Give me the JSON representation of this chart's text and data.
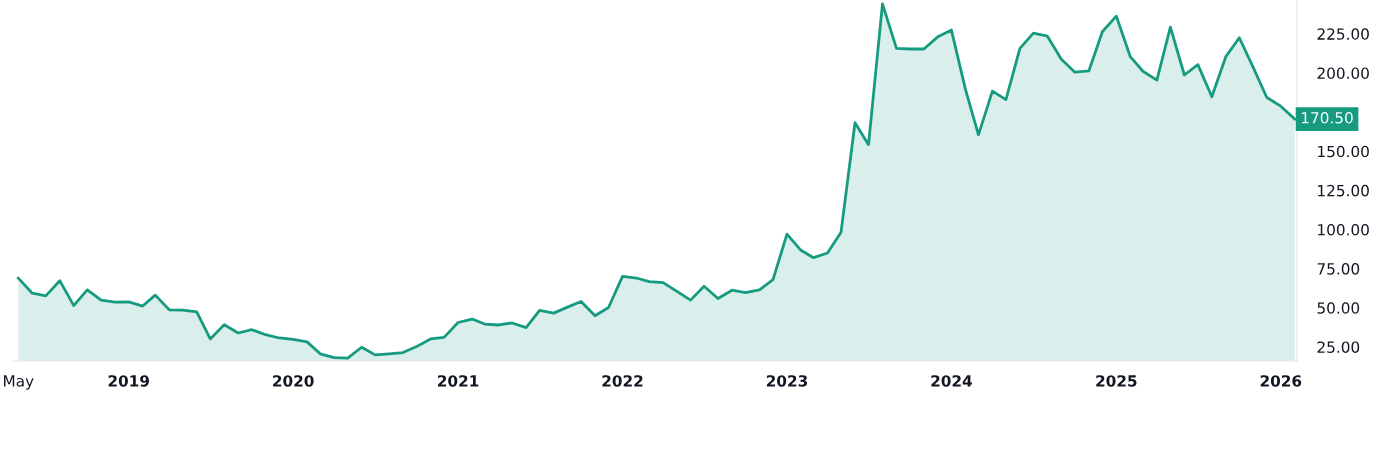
{
  "chart_data": {
    "type": "area",
    "x": [
      "2018-05",
      "2018-06",
      "2018-07",
      "2018-08",
      "2018-09",
      "2018-10",
      "2018-11",
      "2018-12",
      "2019-01",
      "2019-02",
      "2019-03",
      "2019-04",
      "2019-05",
      "2019-06",
      "2019-07",
      "2019-08",
      "2019-09",
      "2019-10",
      "2019-11",
      "2019-12",
      "2020-01",
      "2020-02",
      "2020-03",
      "2020-04",
      "2020-05",
      "2020-06",
      "2020-07",
      "2020-08",
      "2020-09",
      "2020-10",
      "2020-11",
      "2020-12",
      "2021-01",
      "2021-02",
      "2021-03",
      "2021-04",
      "2021-05",
      "2021-06",
      "2021-07",
      "2021-08",
      "2021-09",
      "2021-10",
      "2021-11",
      "2021-12",
      "2022-01",
      "2022-02",
      "2022-03",
      "2022-04",
      "2022-05",
      "2022-06",
      "2022-07",
      "2022-08",
      "2022-09",
      "2022-10",
      "2022-11",
      "2022-12",
      "2023-01",
      "2023-02",
      "2023-03",
      "2023-04",
      "2023-05",
      "2023-06",
      "2023-07",
      "2023-08",
      "2023-09",
      "2023-10",
      "2023-11",
      "2023-12",
      "2024-01",
      "2024-02",
      "2024-03",
      "2024-04",
      "2024-05",
      "2024-06",
      "2024-07",
      "2024-08",
      "2024-09",
      "2024-10",
      "2024-11",
      "2024-12",
      "2025-01",
      "2025-02",
      "2025-03",
      "2025-04",
      "2025-05",
      "2025-06",
      "2025-07",
      "2025-08",
      "2025-09",
      "2025-10",
      "2025-11",
      "2025-12",
      "2026-01",
      "2026-02"
    ],
    "series": [
      {
        "color": "#179b80",
        "values": [
          68.9,
          59.3,
          57.6,
          67.3,
          51.4,
          61.4,
          54.9,
          53.6,
          53.8,
          51.1,
          58.1,
          48.7,
          48.5,
          47.4,
          30.1,
          39.2,
          33.9,
          36.0,
          32.8,
          30.7,
          29.8,
          28.2,
          20.6,
          18.2,
          17.8,
          24.8,
          19.9,
          20.6,
          21.4,
          25.2,
          30.1,
          31.1,
          40.6,
          42.8,
          39.6,
          39.0,
          40.3,
          37.3,
          48.3,
          46.6,
          50.4,
          54.0,
          44.9,
          50.2,
          70.1,
          69.0,
          66.7,
          66.1,
          60.6,
          54.9,
          63.8,
          55.9,
          61.2,
          59.7,
          61.4,
          68.0,
          97.0,
          86.7,
          82.0,
          85.0,
          98.3,
          168.2,
          154.2,
          244.1,
          215.7,
          215.3,
          215.3,
          222.9,
          227.4,
          189.7,
          160.4,
          188.4,
          183.0,
          215.7,
          225.4,
          223.5,
          208.7,
          200.5,
          201.3,
          226.3,
          236.3,
          210.4,
          201.1,
          195.4,
          229.3,
          198.7,
          205.3,
          184.8,
          210.4,
          222.5,
          203.4,
          184.3,
          178.8,
          170.5
        ]
      }
    ],
    "xlim": [
      "2018-04-17",
      "2026-02-06"
    ],
    "xticks": [
      {
        "value": "2018-05",
        "label": "May"
      },
      {
        "value": "2019-01",
        "label": "2019"
      },
      {
        "value": "2020-01",
        "label": "2020"
      },
      {
        "value": "2021-01",
        "label": "2021"
      },
      {
        "value": "2022-01",
        "label": "2022"
      },
      {
        "value": "2023-01",
        "label": "2023"
      },
      {
        "value": "2024-01",
        "label": "2024"
      },
      {
        "value": "2025-01",
        "label": "2025"
      },
      {
        "value": "2026-01",
        "label": "2026"
      }
    ],
    "ylim": [
      16,
      246
    ],
    "yticks": [
      {
        "value": 25,
        "label": "25.00"
      },
      {
        "value": 50,
        "label": "50.00"
      },
      {
        "value": 75,
        "label": "75.00"
      },
      {
        "value": 100,
        "label": "100.00"
      },
      {
        "value": 125,
        "label": "125.00"
      },
      {
        "value": 150,
        "label": "150.00"
      },
      {
        "value": 200,
        "label": "200.00"
      },
      {
        "value": 225,
        "label": "225.00"
      }
    ],
    "grid": false,
    "annotations": [
      {
        "text": "170.50",
        "x": "2026-02",
        "y": 170.5
      }
    ]
  }
}
